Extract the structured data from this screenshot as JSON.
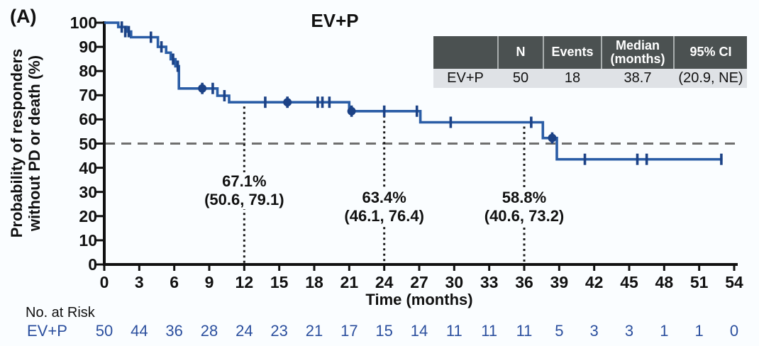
{
  "panel_label": "(A)",
  "inset_table": {
    "headers": [
      "",
      "N",
      "Events",
      "Median\n(months)",
      "95% CI"
    ],
    "row": [
      "EV+P",
      "50",
      "18",
      "38.7",
      "(20.9, NE)"
    ]
  },
  "chart_data": {
    "type": "line",
    "subtype": "kaplan-meier-step",
    "title": "EV+P",
    "xlabel": "Time (months)",
    "ylabel": "Probability of responders without PD or death (%)",
    "ylabel_lines": [
      "Probability of responders",
      "without PD or death (%)"
    ],
    "xlim": [
      0,
      54
    ],
    "ylim": [
      0,
      100
    ],
    "xticks": [
      0,
      3,
      6,
      9,
      12,
      15,
      18,
      21,
      24,
      27,
      30,
      33,
      36,
      39,
      42,
      45,
      48,
      51,
      54
    ],
    "yticks": [
      0,
      10,
      20,
      30,
      40,
      50,
      60,
      70,
      80,
      90,
      100
    ],
    "grid": false,
    "reference_line_y": 50,
    "series": [
      {
        "name": "EV+P",
        "steps": [
          [
            0,
            100
          ],
          [
            1.2,
            100
          ],
          [
            1.2,
            98.2
          ],
          [
            1.9,
            98.2
          ],
          [
            1.9,
            96.3
          ],
          [
            2.3,
            96.3
          ],
          [
            2.3,
            94
          ],
          [
            4.6,
            94
          ],
          [
            4.6,
            90
          ],
          [
            5.3,
            90
          ],
          [
            5.3,
            87.6
          ],
          [
            5.7,
            87.6
          ],
          [
            5.7,
            84.9
          ],
          [
            6.1,
            84.9
          ],
          [
            6.1,
            82
          ],
          [
            6.4,
            82
          ],
          [
            6.4,
            72.8
          ],
          [
            9.7,
            72.8
          ],
          [
            9.7,
            69.8
          ],
          [
            10.7,
            69.8
          ],
          [
            10.7,
            67.1
          ],
          [
            21,
            67.1
          ],
          [
            21,
            63.4
          ],
          [
            27.1,
            63.4
          ],
          [
            27.1,
            58.8
          ],
          [
            37.6,
            58.8
          ],
          [
            37.6,
            52.3
          ],
          [
            38.8,
            52.3
          ],
          [
            38.8,
            43.5
          ],
          [
            53,
            43.5
          ]
        ],
        "censors": [
          {
            "m": 1.5,
            "p": 98.2,
            "style": "tick"
          },
          {
            "m": 1.8,
            "p": 96.3,
            "style": "tick"
          },
          {
            "m": 2.1,
            "p": 96.3,
            "style": "tick"
          },
          {
            "m": 4.0,
            "p": 94,
            "style": "tick"
          },
          {
            "m": 4.9,
            "p": 90,
            "style": "tick"
          },
          {
            "m": 5.9,
            "p": 84.9,
            "style": "tick"
          },
          {
            "m": 6.3,
            "p": 82,
            "style": "tick"
          },
          {
            "m": 8.4,
            "p": 72.8,
            "style": "dot"
          },
          {
            "m": 9.3,
            "p": 72.8,
            "style": "tick"
          },
          {
            "m": 10.3,
            "p": 69.8,
            "style": "tick"
          },
          {
            "m": 13.8,
            "p": 67.1,
            "style": "tick"
          },
          {
            "m": 15.7,
            "p": 67.1,
            "style": "dot"
          },
          {
            "m": 18.3,
            "p": 67.1,
            "style": "tick"
          },
          {
            "m": 18.7,
            "p": 67.1,
            "style": "tick"
          },
          {
            "m": 19.3,
            "p": 67.1,
            "style": "tick"
          },
          {
            "m": 21.2,
            "p": 63.4,
            "style": "dot"
          },
          {
            "m": 24,
            "p": 63.4,
            "style": "tick"
          },
          {
            "m": 26.8,
            "p": 63.4,
            "style": "tick"
          },
          {
            "m": 29.7,
            "p": 58.8,
            "style": "tick"
          },
          {
            "m": 36.6,
            "p": 58.8,
            "style": "tick"
          },
          {
            "m": 38.4,
            "p": 52.3,
            "style": "dot"
          },
          {
            "m": 41.2,
            "p": 43.5,
            "style": "tick"
          },
          {
            "m": 45.7,
            "p": 43.5,
            "style": "tick"
          },
          {
            "m": 46.5,
            "p": 43.5,
            "style": "tick"
          },
          {
            "m": 52.9,
            "p": 43.5,
            "style": "tick"
          }
        ]
      }
    ],
    "landmarks": [
      {
        "month": 12,
        "pct": 67.1,
        "value": "67.1%",
        "ci": "(50.6, 79.1)",
        "text_top": 243
      },
      {
        "month": 24,
        "pct": 63.4,
        "value": "63.4%",
        "ci": "(46.1, 76.4)",
        "text_top": 266
      },
      {
        "month": 36,
        "pct": 58.8,
        "value": "58.8%",
        "ci": "(40.6, 73.2)",
        "text_top": 266
      }
    ]
  },
  "risk_table": {
    "label": "No. at Risk",
    "row_label": "EV+P",
    "values": [
      "50",
      "44",
      "36",
      "28",
      "24",
      "23",
      "21",
      "17",
      "15",
      "14",
      "11",
      "11",
      "11",
      "5",
      "3",
      "3",
      "1",
      "1",
      "0"
    ]
  },
  "colors": {
    "curve": "#2a5da6",
    "censor": "#1c4286",
    "risk_text": "#2b4f9e",
    "axis": "#111111",
    "dashed_reference": "#6f6f6f",
    "dotted_guide": "#1a1a1a",
    "table_header_bg": "#4b5151",
    "table_row_bg": "#dfe2e6",
    "background": "#fafdff"
  }
}
